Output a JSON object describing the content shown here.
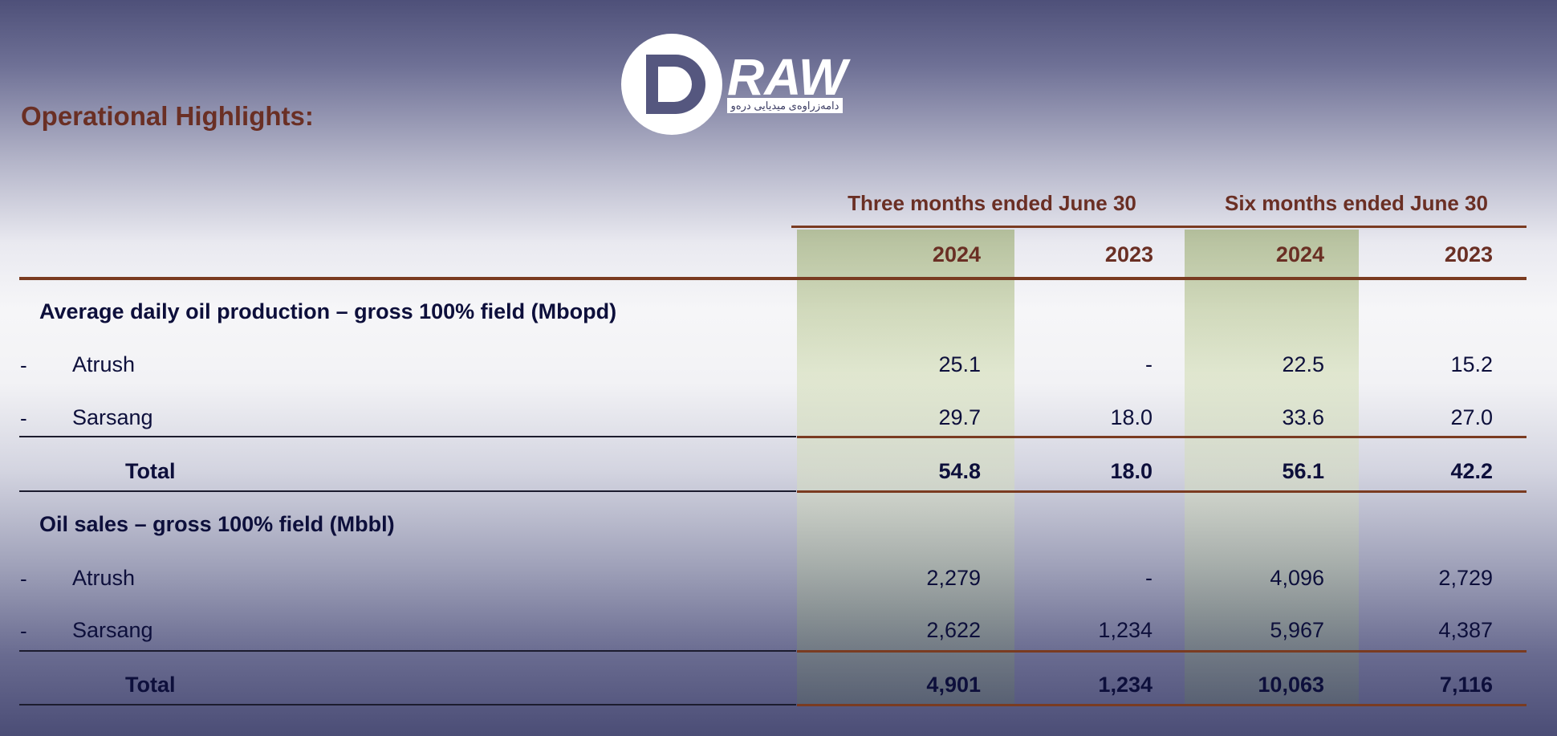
{
  "title": "Operational Highlights:",
  "logo": {
    "text": "DRAW",
    "tagline": "دامەزراوەی میدیایی درەو",
    "colors": {
      "brand": "#ffffff"
    }
  },
  "header": {
    "group1": "Three months ended June 30",
    "group2": "Six months ended June 30",
    "years": [
      "2024",
      "2023",
      "2024",
      "2023"
    ]
  },
  "sections": [
    {
      "title": "Average daily oil production – gross 100% field (Mbopd)",
      "rows": [
        {
          "dash": "-",
          "label": "Atrush",
          "values": [
            "25.1",
            "-",
            "22.5",
            "15.2"
          ]
        },
        {
          "dash": "-",
          "label": "Sarsang",
          "values": [
            "29.7",
            "18.0",
            "33.6",
            "27.0"
          ]
        }
      ],
      "total": {
        "label": "Total",
        "values": [
          "54.8",
          "18.0",
          "56.1",
          "42.2"
        ]
      }
    },
    {
      "title": "Oil sales – gross 100% field (Mbbl)",
      "rows": [
        {
          "dash": "-",
          "label": "Atrush",
          "values": [
            "2,279",
            "-",
            "4,096",
            "2,729"
          ]
        },
        {
          "dash": "-",
          "label": "Sarsang",
          "values": [
            "2,622",
            "1,234",
            "5,967",
            "4,387"
          ]
        }
      ],
      "total": {
        "label": "Total",
        "values": [
          "4,901",
          "1,234",
          "10,063",
          "7,116"
        ]
      }
    }
  ],
  "colors": {
    "heading": "#6a2f24",
    "text": "#0d0f3b",
    "rule": "#7a3b21"
  }
}
